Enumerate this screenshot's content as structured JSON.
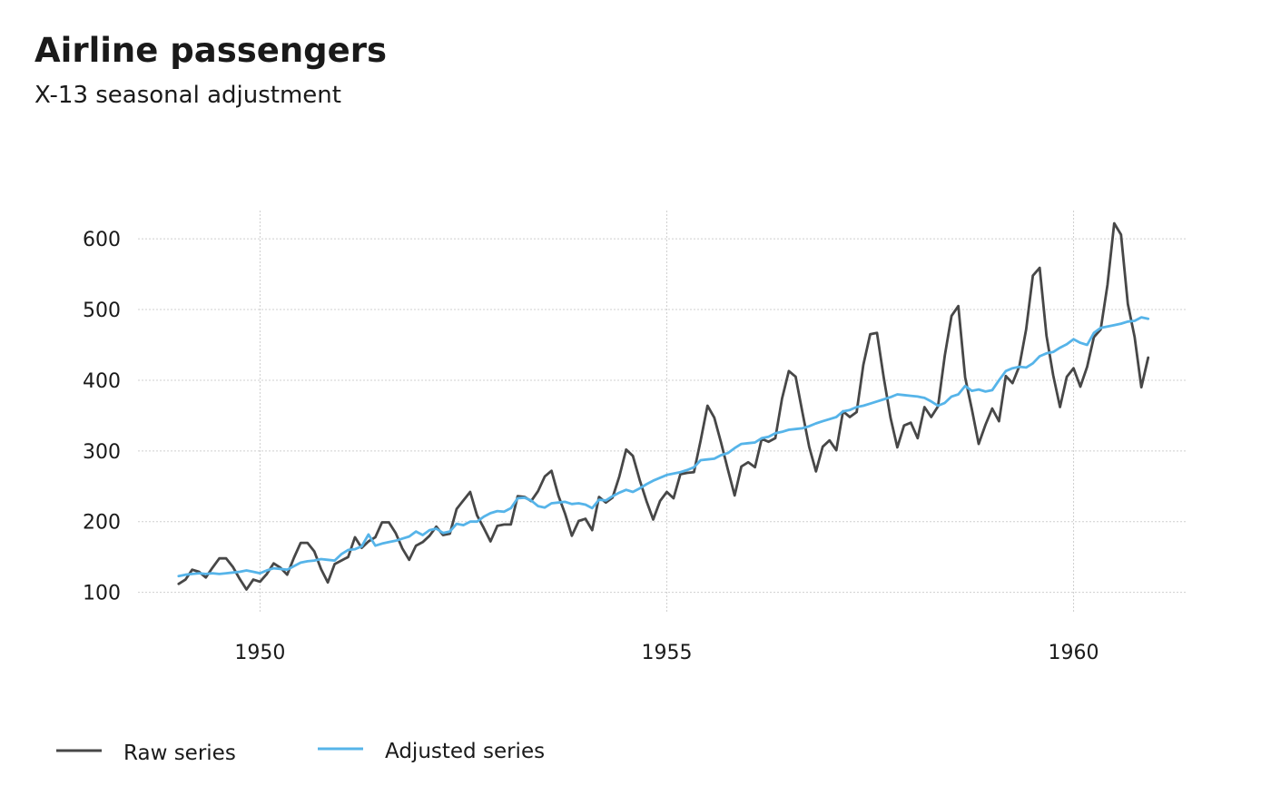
{
  "chart_data": {
    "type": "line",
    "title": "Airline passengers",
    "subtitle": "X-13 seasonal adjustment",
    "xlabel": "",
    "ylabel": "",
    "x_start": 1949.0,
    "x_step": 0.0833333,
    "xlim": [
      1948.5,
      1961.4
    ],
    "ylim": [
      70,
      640
    ],
    "xticks": [
      1950,
      1955,
      1960
    ],
    "yticks": [
      100,
      200,
      300,
      400,
      500,
      600
    ],
    "grid": true,
    "legend_position": "bottom",
    "series": [
      {
        "name": "Raw series",
        "color": "#474747",
        "values": [
          112,
          118,
          132,
          129,
          121,
          135,
          148,
          148,
          136,
          119,
          104,
          118,
          115,
          126,
          141,
          135,
          125,
          149,
          170,
          170,
          158,
          133,
          114,
          140,
          145,
          150,
          178,
          163,
          172,
          178,
          199,
          199,
          184,
          162,
          146,
          166,
          171,
          180,
          193,
          181,
          183,
          218,
          230,
          242,
          209,
          191,
          172,
          194,
          196,
          196,
          236,
          235,
          229,
          243,
          264,
          272,
          237,
          211,
          180,
          201,
          204,
          188,
          235,
          227,
          234,
          264,
          302,
          293,
          259,
          229,
          203,
          229,
          242,
          233,
          267,
          269,
          270,
          315,
          364,
          347,
          312,
          274,
          237,
          278,
          284,
          277,
          317,
          313,
          318,
          374,
          413,
          405,
          355,
          306,
          271,
          306,
          315,
          301,
          356,
          348,
          355,
          422,
          465,
          467,
          404,
          347,
          305,
          336,
          340,
          318,
          362,
          348,
          363,
          435,
          491,
          505,
          404,
          359,
          310,
          337,
          360,
          342,
          406,
          396,
          420,
          472,
          548,
          559,
          463,
          407,
          362,
          405,
          417,
          391,
          419,
          461,
          472,
          535,
          622,
          606,
          508,
          461,
          390,
          432
        ]
      },
      {
        "name": "Adjusted series",
        "color": "#56b4e9",
        "values": [
          123,
          125,
          126,
          127,
          126,
          127,
          126,
          127,
          128,
          129,
          131,
          129,
          127,
          131,
          134,
          133,
          132,
          137,
          142,
          144,
          145,
          147,
          146,
          145,
          154,
          160,
          161,
          165,
          182,
          166,
          169,
          171,
          173,
          176,
          179,
          186,
          181,
          188,
          190,
          184,
          186,
          197,
          195,
          200,
          200,
          207,
          212,
          215,
          214,
          219,
          233,
          234,
          230,
          222,
          220,
          226,
          227,
          228,
          225,
          226,
          224,
          219,
          231,
          230,
          236,
          241,
          245,
          242,
          247,
          253,
          258,
          262,
          266,
          268,
          270,
          273,
          277,
          287,
          288,
          289,
          294,
          297,
          304,
          310,
          311,
          312,
          318,
          320,
          325,
          327,
          330,
          331,
          332,
          335,
          339,
          342,
          345,
          348,
          356,
          358,
          362,
          364,
          367,
          370,
          373,
          376,
          380,
          379,
          378,
          377,
          375,
          370,
          364,
          368,
          377,
          380,
          392,
          385,
          387,
          384,
          386,
          400,
          413,
          417,
          419,
          418,
          424,
          434,
          438,
          440,
          446,
          451,
          458,
          453,
          450,
          467,
          474,
          476,
          478,
          480,
          483,
          484,
          489,
          487
        ]
      }
    ]
  }
}
